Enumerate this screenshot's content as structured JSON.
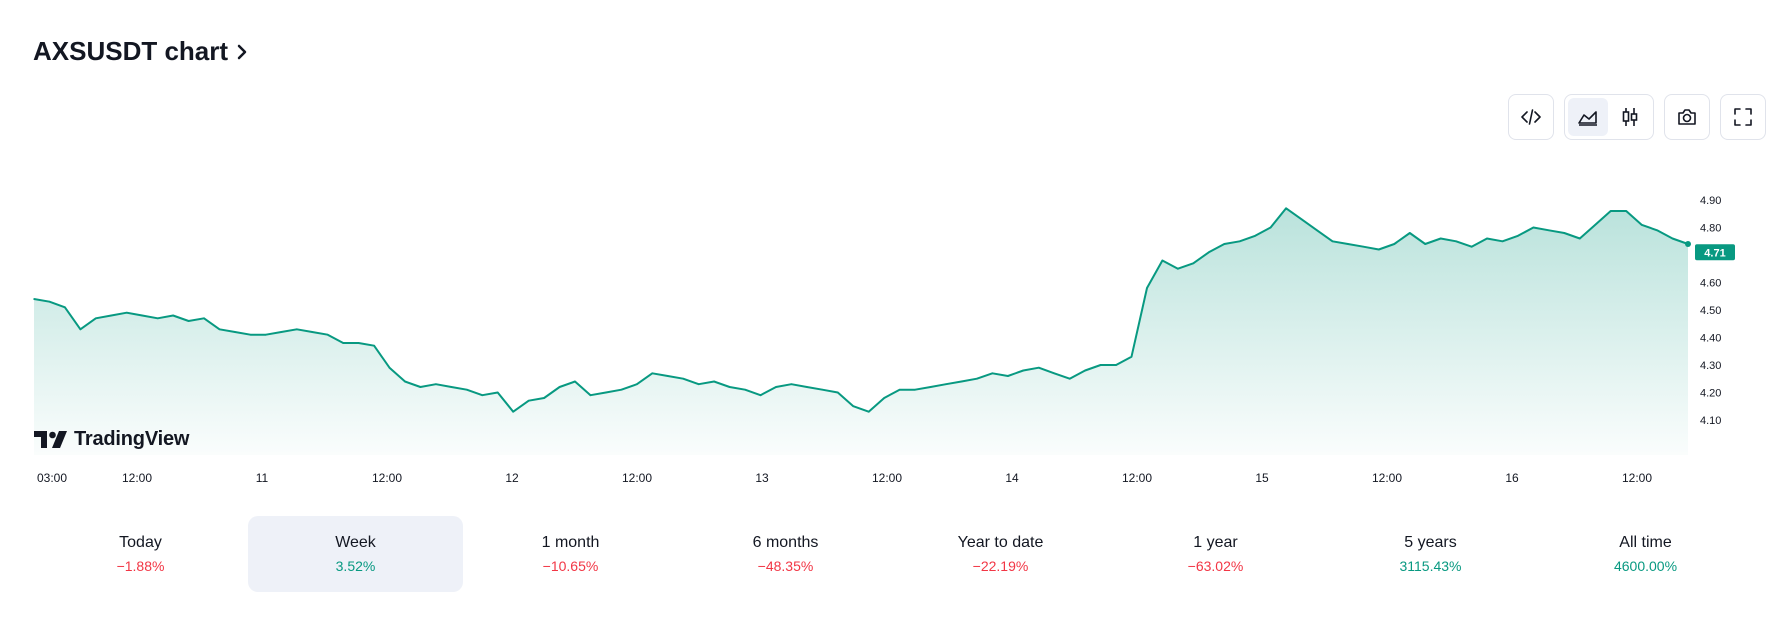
{
  "title": "AXSUSDT chart",
  "toolbar": {
    "buttons": [
      {
        "icon": "embed-code-icon"
      },
      {
        "icon": "area-chart-icon",
        "active": true
      },
      {
        "icon": "candlestick-icon"
      },
      {
        "icon": "camera-icon"
      },
      {
        "icon": "fullscreen-icon"
      }
    ]
  },
  "brand": {
    "name": "TradingView"
  },
  "colors": {
    "line": "#089981",
    "negative": "#f23645",
    "positive": "#089981",
    "activeTab": "#eef1f8"
  },
  "chart_data": {
    "type": "area",
    "title": "",
    "xlabel": "",
    "ylabel": "",
    "x_ticks": [
      "03:00",
      "12:00",
      "11",
      "12:00",
      "12",
      "12:00",
      "13",
      "12:00",
      "14",
      "12:00",
      "15",
      "12:00",
      "16",
      "12:00"
    ],
    "y_ticks": [
      "4.90",
      "4.80",
      "4.70",
      "4.60",
      "4.50",
      "4.40",
      "4.30",
      "4.20",
      "4.10"
    ],
    "ylim": [
      4.07,
      4.99
    ],
    "last_price": "4.71",
    "grid": false,
    "series": [
      {
        "values": [
          4.54,
          4.53,
          4.51,
          4.43,
          4.47,
          4.48,
          4.49,
          4.48,
          4.47,
          4.48,
          4.46,
          4.47,
          4.43,
          4.42,
          4.41,
          4.41,
          4.42,
          4.43,
          4.42,
          4.41,
          4.38,
          4.38,
          4.37,
          4.29,
          4.24,
          4.22,
          4.23,
          4.22,
          4.21,
          4.19,
          4.2,
          4.13,
          4.17,
          4.18,
          4.22,
          4.24,
          4.19,
          4.2,
          4.21,
          4.23,
          4.27,
          4.26,
          4.25,
          4.23,
          4.24,
          4.22,
          4.21,
          4.19,
          4.22,
          4.23,
          4.22,
          4.21,
          4.2,
          4.15,
          4.13,
          4.18,
          4.21,
          4.21,
          4.22,
          4.23,
          4.24,
          4.25,
          4.27,
          4.26,
          4.28,
          4.29,
          4.27,
          4.25,
          4.28,
          4.3,
          4.3,
          4.33,
          4.58,
          4.68,
          4.65,
          4.67,
          4.71,
          4.74,
          4.75,
          4.77,
          4.8,
          4.87,
          4.83,
          4.79,
          4.75,
          4.74,
          4.73,
          4.72,
          4.74,
          4.78,
          4.74,
          4.76,
          4.75,
          4.73,
          4.76,
          4.75,
          4.77,
          4.8,
          4.79,
          4.78,
          4.76,
          4.81,
          4.86,
          4.86,
          4.81,
          4.79,
          4.76,
          4.74
        ]
      }
    ]
  },
  "periods": [
    {
      "label": "Today",
      "value": "−1.88%",
      "trend": "neg"
    },
    {
      "label": "Week",
      "value": "3.52%",
      "trend": "pos",
      "active": true
    },
    {
      "label": "1 month",
      "value": "−10.65%",
      "trend": "neg"
    },
    {
      "label": "6 months",
      "value": "−48.35%",
      "trend": "neg"
    },
    {
      "label": "Year to date",
      "value": "−22.19%",
      "trend": "neg"
    },
    {
      "label": "1 year",
      "value": "−63.02%",
      "trend": "neg"
    },
    {
      "label": "5 years",
      "value": "3115.43%",
      "trend": "pos"
    },
    {
      "label": "All time",
      "value": "4600.00%",
      "trend": "pos"
    }
  ]
}
